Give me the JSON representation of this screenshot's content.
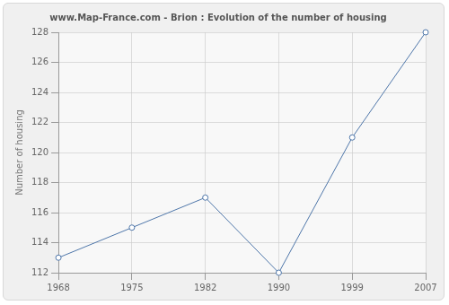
{
  "chart_data": {
    "type": "line",
    "title": "www.Map-France.com - Brion : Evolution of the number of housing",
    "y_label": "Number of housing",
    "categories": [
      "1968",
      "1975",
      "1982",
      "1990",
      "1999",
      "2007"
    ],
    "values": [
      113,
      115,
      117,
      112,
      121,
      128
    ],
    "color": "#4f77aa",
    "marker": "circle",
    "line_style": "solid",
    "ylim": [
      112,
      128
    ],
    "yticks": [
      112,
      114,
      116,
      118,
      120,
      122,
      124,
      126,
      128
    ],
    "grid": true
  }
}
